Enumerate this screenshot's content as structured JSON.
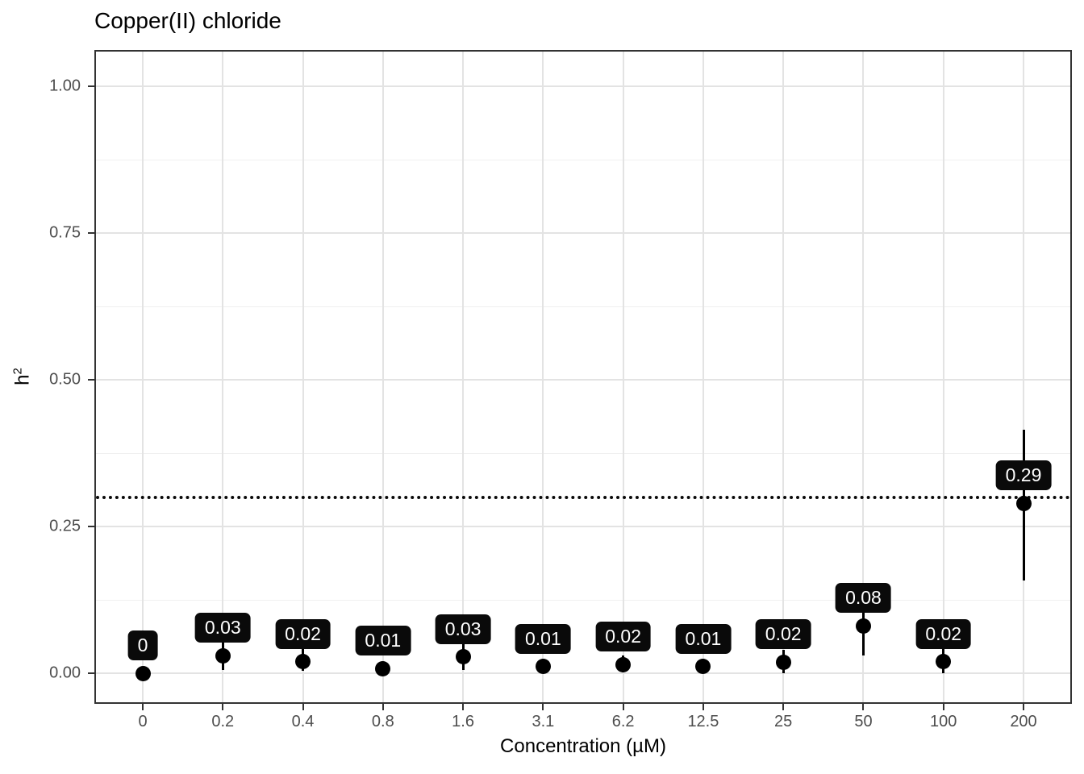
{
  "chart_data": {
    "type": "scatter",
    "title": "Copper(II) chloride",
    "xlabel": "Concentration (µM)",
    "ylabel_base": "h",
    "ylabel_sup": "2",
    "x_categories": [
      "0",
      "0.2",
      "0.4",
      "0.8",
      "1.6",
      "3.1",
      "6.2",
      "12.5",
      "25",
      "50",
      "100",
      "200"
    ],
    "y_ticks": [
      {
        "label": "0.00",
        "value": 0.0
      },
      {
        "label": "0.25",
        "value": 0.25
      },
      {
        "label": "0.50",
        "value": 0.5
      },
      {
        "label": "0.75",
        "value": 0.75
      },
      {
        "label": "1.00",
        "value": 1.0
      }
    ],
    "y_minor_ticks": [
      0.125,
      0.375,
      0.625,
      0.875
    ],
    "ylim": [
      -0.049,
      1.059
    ],
    "grid": true,
    "legend": "none",
    "reference_line": {
      "value": 0.3,
      "style": "dotted",
      "color": "#0a0a0a"
    },
    "points": [
      {
        "x": "0",
        "value": 0.0,
        "label": "0",
        "err_lo": 0.0,
        "err_hi": 0.0
      },
      {
        "x": "0.2",
        "value": 0.03,
        "label": "0.03",
        "err_lo": 0.006,
        "err_hi": 0.054
      },
      {
        "x": "0.4",
        "value": 0.02,
        "label": "0.02",
        "err_lo": 0.004,
        "err_hi": 0.042
      },
      {
        "x": "0.8",
        "value": 0.008,
        "label": "0.01",
        "err_lo": 0.001,
        "err_hi": 0.02
      },
      {
        "x": "1.6",
        "value": 0.028,
        "label": "0.03",
        "err_lo": 0.006,
        "err_hi": 0.05
      },
      {
        "x": "3.1",
        "value": 0.012,
        "label": "0.01",
        "err_lo": 0.003,
        "err_hi": 0.025
      },
      {
        "x": "6.2",
        "value": 0.015,
        "label": "0.02",
        "err_lo": 0.002,
        "err_hi": 0.03
      },
      {
        "x": "12.5",
        "value": 0.012,
        "label": "0.01",
        "err_lo": 0.003,
        "err_hi": 0.025
      },
      {
        "x": "25",
        "value": 0.019,
        "label": "0.02",
        "err_lo": 0.0,
        "err_hi": 0.04
      },
      {
        "x": "50",
        "value": 0.081,
        "label": "0.08",
        "err_lo": 0.03,
        "err_hi": 0.13
      },
      {
        "x": "100",
        "value": 0.02,
        "label": "0.02",
        "err_lo": 0.0,
        "err_hi": 0.045
      },
      {
        "x": "200",
        "value": 0.29,
        "label": "0.29",
        "err_lo": 0.158,
        "err_hi": 0.415
      }
    ],
    "colors": {
      "point": "#000000",
      "error_bar": "#000000",
      "label_bg": "#0a0a0a",
      "label_text": "#ffffff",
      "grid_major": "#e3e3e3",
      "grid_minor": "#f0f0f0",
      "panel_border": "#333333",
      "tick_label": "#4d4d4d",
      "title": "#000000"
    }
  }
}
